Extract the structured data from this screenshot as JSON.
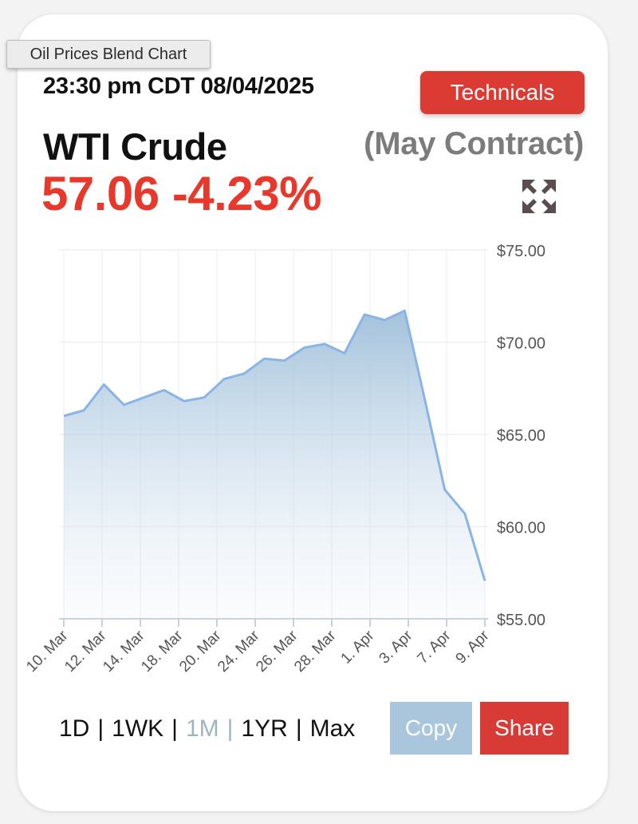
{
  "tooltip": {
    "text": "Oil Prices Blend Chart"
  },
  "header": {
    "timestamp": "23:30 pm CDT 08/04/2025",
    "technicals_label": "Technicals",
    "instrument": "WTI Crude",
    "contract": "(May Contract)",
    "price": "57.06",
    "change": "-4.23%"
  },
  "icons": {
    "expand": "expand-arrows-icon"
  },
  "colors": {
    "price_down": "#e8382c",
    "technicals": "#dc3b33",
    "line": "#8ab4e6",
    "area_top": "#9ebfd9",
    "copy_bg": "#a9c6dd",
    "share_bg": "#d83a35",
    "active_range": "#9fb5bd"
  },
  "chart_data": {
    "type": "area",
    "x_tick_labels": [
      "10. Mar",
      "12. Mar",
      "14. Mar",
      "18. Mar",
      "20. Mar",
      "24. Mar",
      "26. Mar",
      "28. Mar",
      "1. Apr",
      "3. Apr",
      "7. Apr",
      "9. Apr"
    ],
    "y_tick_labels": [
      "$75.00",
      "$70.00",
      "$65.00",
      "$60.00",
      "$55.00"
    ],
    "y_ticks": [
      75,
      70,
      65,
      60,
      55
    ],
    "ylim": [
      55,
      75
    ],
    "series": [
      {
        "values": [
          66.0,
          66.3,
          67.7,
          66.6,
          67.0,
          67.4,
          66.8,
          67.0,
          68.0,
          68.3,
          69.1,
          69.0,
          69.7,
          69.9,
          69.4,
          71.5,
          71.2,
          71.7,
          66.9,
          62.0,
          60.7,
          57.06
        ]
      }
    ],
    "grid": true,
    "yaxis_position": "right"
  },
  "controls": {
    "ranges": [
      "1D",
      "1WK",
      "1M",
      "1YR",
      "Max"
    ],
    "active_range": "1M",
    "separator": "|",
    "copy_label": "Copy",
    "share_label": "Share"
  }
}
